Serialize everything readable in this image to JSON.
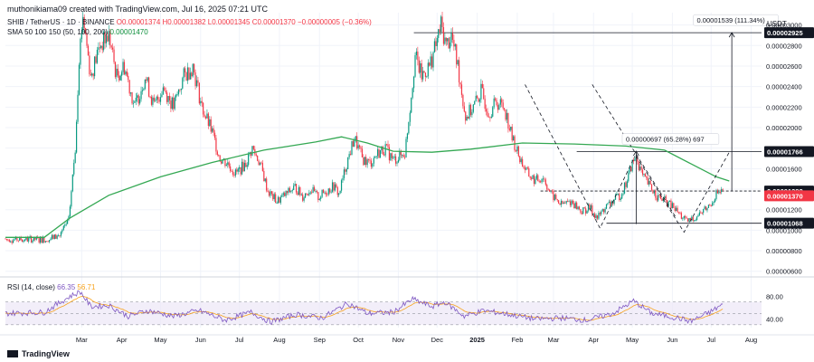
{
  "header": {
    "title": "muthonikiama09 created with TradingView.com, Jul 16, 2025 07:21 UTC"
  },
  "legend": {
    "symbol": "SHIB / TetherUS · 1D · BINANCE",
    "ohlc": "O0.00001374  H0.00001382  L0.00001345  C0.00001370  −0.00000005 (−0.36%)",
    "sma_label": "SMA 50 100 150 (50, 100, 200)",
    "sma_value": "0.00001470"
  },
  "rsi_legend": {
    "label": "RSI (14, close)",
    "value1": "66.35",
    "value2": "56.71"
  },
  "currency": "USDT",
  "brand": "TradingView",
  "colors": {
    "up": "#089981",
    "down": "#f23645",
    "sma": "#34a853",
    "rsi": "#7e57c2",
    "rsi_ma": "#f7a21b",
    "rsi_band": "#ede7f6"
  },
  "chart_data": [
    {
      "type": "candlestick",
      "ylim": [
        5.8e-06,
        3.12e-05
      ],
      "y_ticks": [
        "0.00003000",
        "0.00002800",
        "0.00002600",
        "0.00002400",
        "0.00002200",
        "0.00002000",
        "0.00001800",
        "0.00001600",
        "0.00001400",
        "0.00001200",
        "0.00001000",
        "0.00000800",
        "0.00000600"
      ],
      "y_tick_values": [
        3e-05,
        2.8e-05,
        2.6e-05,
        2.4e-05,
        2.2e-05,
        2e-05,
        1.8e-05,
        1.6e-05,
        1.4e-05,
        1.2e-05,
        1e-05,
        8e-06,
        6e-06
      ],
      "x_ticks": [
        "Mar",
        "Apr",
        "May",
        "Jun",
        "Jul",
        "Aug",
        "Sep",
        "Oct",
        "Nov",
        "Dec",
        "2025",
        "Feb",
        "Mar",
        "Apr",
        "May",
        "Jun",
        "Jul",
        "Aug"
      ],
      "x_tick_days": [
        59,
        90,
        120,
        151,
        181,
        212,
        243,
        273,
        304,
        334,
        365,
        396,
        424,
        455,
        485,
        516,
        546,
        577
      ],
      "anchors": [
        {
          "day": 35,
          "close": 9.2e-06
        },
        {
          "day": 42,
          "close": 9.5e-06
        },
        {
          "day": 49,
          "close": 1.1e-05
        },
        {
          "day": 54,
          "close": 1.8e-05
        },
        {
          "day": 57,
          "close": 2.7e-05
        },
        {
          "day": 60,
          "close": 3.1e-05
        },
        {
          "day": 66,
          "close": 2.5e-05
        },
        {
          "day": 73,
          "close": 2.8e-05
        },
        {
          "day": 80,
          "close": 2.9e-05
        },
        {
          "day": 86,
          "close": 2.5e-05
        },
        {
          "day": 92,
          "close": 2.6e-05
        },
        {
          "day": 100,
          "close": 2.2e-05
        },
        {
          "day": 108,
          "close": 2.5e-05
        },
        {
          "day": 115,
          "close": 2.2e-05
        },
        {
          "day": 122,
          "close": 2.4e-05
        },
        {
          "day": 130,
          "close": 2.2e-05
        },
        {
          "day": 138,
          "close": 2.5e-05
        },
        {
          "day": 145,
          "close": 2.6e-05
        },
        {
          "day": 152,
          "close": 2.2e-05
        },
        {
          "day": 160,
          "close": 1.95e-05
        },
        {
          "day": 166,
          "close": 1.7e-05
        },
        {
          "day": 172,
          "close": 1.65e-05
        },
        {
          "day": 178,
          "close": 1.55e-05
        },
        {
          "day": 186,
          "close": 1.65e-05
        },
        {
          "day": 191,
          "close": 1.8e-05
        },
        {
          "day": 197,
          "close": 1.65e-05
        },
        {
          "day": 203,
          "close": 1.38e-05
        },
        {
          "day": 210,
          "close": 1.28e-05
        },
        {
          "day": 217,
          "close": 1.35e-05
        },
        {
          "day": 224,
          "close": 1.42e-05
        },
        {
          "day": 230,
          "close": 1.33e-05
        },
        {
          "day": 236,
          "close": 1.4e-05
        },
        {
          "day": 242,
          "close": 1.32e-05
        },
        {
          "day": 248,
          "close": 1.38e-05
        },
        {
          "day": 254,
          "close": 1.43e-05
        },
        {
          "day": 258,
          "close": 1.35e-05
        },
        {
          "day": 264,
          "close": 1.65e-05
        },
        {
          "day": 270,
          "close": 1.9e-05
        },
        {
          "day": 276,
          "close": 1.7e-05
        },
        {
          "day": 282,
          "close": 1.65e-05
        },
        {
          "day": 288,
          "close": 1.75e-05
        },
        {
          "day": 294,
          "close": 1.8e-05
        },
        {
          "day": 300,
          "close": 1.68e-05
        },
        {
          "day": 305,
          "close": 1.72e-05
        },
        {
          "day": 309,
          "close": 1.75e-05
        },
        {
          "day": 313,
          "close": 2.2e-05
        },
        {
          "day": 317,
          "close": 2.7e-05
        },
        {
          "day": 322,
          "close": 2.5e-05
        },
        {
          "day": 328,
          "close": 2.6e-05
        },
        {
          "day": 333,
          "close": 2.8e-05
        },
        {
          "day": 337,
          "close": 3e-05
        },
        {
          "day": 341,
          "close": 2.8e-05
        },
        {
          "day": 345,
          "close": 2.9e-05
        },
        {
          "day": 350,
          "close": 2.6e-05
        },
        {
          "day": 356,
          "close": 2.1e-05
        },
        {
          "day": 362,
          "close": 2.2e-05
        },
        {
          "day": 368,
          "close": 2.35e-05
        },
        {
          "day": 374,
          "close": 2.15e-05
        },
        {
          "day": 380,
          "close": 2.25e-05
        },
        {
          "day": 386,
          "close": 2.2e-05
        },
        {
          "day": 392,
          "close": 1.9e-05
        },
        {
          "day": 398,
          "close": 1.7e-05
        },
        {
          "day": 404,
          "close": 1.55e-05
        },
        {
          "day": 410,
          "close": 1.48e-05
        },
        {
          "day": 416,
          "close": 1.52e-05
        },
        {
          "day": 422,
          "close": 1.35e-05
        },
        {
          "day": 430,
          "close": 1.25e-05
        },
        {
          "day": 438,
          "close": 1.28e-05
        },
        {
          "day": 446,
          "close": 1.18e-05
        },
        {
          "day": 452,
          "close": 1.22e-05
        },
        {
          "day": 458,
          "close": 1.12e-05
        },
        {
          "day": 464,
          "close": 1.22e-05
        },
        {
          "day": 470,
          "close": 1.28e-05
        },
        {
          "day": 476,
          "close": 1.35e-05
        },
        {
          "day": 480,
          "close": 1.45e-05
        },
        {
          "day": 484,
          "close": 1.62e-05
        },
        {
          "day": 488,
          "close": 1.72e-05
        },
        {
          "day": 493,
          "close": 1.52e-05
        },
        {
          "day": 499,
          "close": 1.42e-05
        },
        {
          "day": 505,
          "close": 1.32e-05
        },
        {
          "day": 511,
          "close": 1.28e-05
        },
        {
          "day": 517,
          "close": 1.22e-05
        },
        {
          "day": 522,
          "close": 1.15e-05
        },
        {
          "day": 527,
          "close": 1.08e-05
        },
        {
          "day": 533,
          "close": 1.12e-05
        },
        {
          "day": 539,
          "close": 1.18e-05
        },
        {
          "day": 545,
          "close": 1.24e-05
        },
        {
          "day": 550,
          "close": 1.36e-05
        },
        {
          "day": 555,
          "close": 1.37e-05
        }
      ],
      "sma": [
        {
          "day": 0,
          "value": 9.3e-06
        },
        {
          "day": 30,
          "value": 9.3e-06
        },
        {
          "day": 50,
          "value": 1.12e-05
        },
        {
          "day": 80,
          "value": 1.34e-05
        },
        {
          "day": 120,
          "value": 1.52e-05
        },
        {
          "day": 160,
          "value": 1.66e-05
        },
        {
          "day": 200,
          "value": 1.78e-05
        },
        {
          "day": 240,
          "value": 1.86e-05
        },
        {
          "day": 260,
          "value": 1.91e-05
        },
        {
          "day": 280,
          "value": 1.85e-05
        },
        {
          "day": 300,
          "value": 1.77e-05
        },
        {
          "day": 330,
          "value": 1.76e-05
        },
        {
          "day": 360,
          "value": 1.79e-05
        },
        {
          "day": 400,
          "value": 1.85e-05
        },
        {
          "day": 440,
          "value": 1.84e-05
        },
        {
          "day": 480,
          "value": 1.82e-05
        },
        {
          "day": 510,
          "value": 1.78e-05
        },
        {
          "day": 530,
          "value": 1.65e-05
        },
        {
          "day": 550,
          "value": 1.52e-05
        },
        {
          "day": 560,
          "value": 1.48e-05
        }
      ],
      "horizontal_levels": [
        {
          "label": "0.00002925",
          "value": 2.925e-05,
          "x_from_day": 316,
          "style": "solid"
        },
        {
          "label": "0.00001766",
          "value": 1.766e-05,
          "x_from_day": 442,
          "style": "solid"
        },
        {
          "label": "0.00001382",
          "value": 1.382e-05,
          "x_from_day": 414,
          "style": "dashed"
        },
        {
          "label": "0.00001068",
          "value": 1.068e-05,
          "x_from_day": 465,
          "style": "solid"
        }
      ],
      "current_price_label": "0.00001370",
      "current_price_value": 1.37e-05,
      "measure_labels": [
        {
          "text": "0.00001539 (111.34%)",
          "day": 535,
          "value": 3.03e-05
        },
        {
          "text": "0.00000697 (65.28%) 697",
          "day": 480,
          "value": 1.87e-05
        }
      ],
      "pattern_lines": [
        {
          "points": [
            [
              454,
              2.42e-05
            ],
            [
              519,
              1.12e-05
            ]
          ],
          "style": "dashed"
        },
        {
          "points": [
            [
              402,
              2.42e-05
            ],
            [
              460,
              1.02e-05
            ],
            [
              487,
              1.72e-05
            ]
          ],
          "style": "dashed"
        },
        {
          "points": [
            [
              488,
              1.72e-05
            ],
            [
              525,
              9.8e-06
            ],
            [
              560,
              1.76e-05
            ]
          ],
          "style": "dashed"
        }
      ],
      "measure_arrows": [
        {
          "day": 562,
          "from": 1.38e-05,
          "to": 2.925e-05
        },
        {
          "day": 488,
          "from": 1.06e-05,
          "to": 1.77e-05
        }
      ]
    },
    {
      "type": "line",
      "title": "RSI (14, close)",
      "ylim": [
        25,
        95
      ],
      "y_ticks": [
        "80.00",
        "40.00"
      ],
      "y_tick_values": [
        80,
        40
      ],
      "band": [
        30,
        70
      ],
      "anchors": [
        {
          "day": 0,
          "value": 50
        },
        {
          "day": 30,
          "value": 52
        },
        {
          "day": 50,
          "value": 80
        },
        {
          "day": 58,
          "value": 88
        },
        {
          "day": 66,
          "value": 62
        },
        {
          "day": 80,
          "value": 64
        },
        {
          "day": 95,
          "value": 45
        },
        {
          "day": 110,
          "value": 55
        },
        {
          "day": 130,
          "value": 45
        },
        {
          "day": 150,
          "value": 55
        },
        {
          "day": 170,
          "value": 38
        },
        {
          "day": 190,
          "value": 52
        },
        {
          "day": 205,
          "value": 35
        },
        {
          "day": 225,
          "value": 48
        },
        {
          "day": 245,
          "value": 42
        },
        {
          "day": 265,
          "value": 68
        },
        {
          "day": 280,
          "value": 50
        },
        {
          "day": 300,
          "value": 52
        },
        {
          "day": 315,
          "value": 75
        },
        {
          "day": 330,
          "value": 62
        },
        {
          "day": 340,
          "value": 70
        },
        {
          "day": 355,
          "value": 45
        },
        {
          "day": 370,
          "value": 55
        },
        {
          "day": 390,
          "value": 48
        },
        {
          "day": 410,
          "value": 40
        },
        {
          "day": 430,
          "value": 42
        },
        {
          "day": 450,
          "value": 38
        },
        {
          "day": 470,
          "value": 50
        },
        {
          "day": 486,
          "value": 72
        },
        {
          "day": 500,
          "value": 50
        },
        {
          "day": 520,
          "value": 42
        },
        {
          "day": 530,
          "value": 36
        },
        {
          "day": 545,
          "value": 52
        },
        {
          "day": 555,
          "value": 66
        }
      ],
      "current_value": 66.35,
      "ma_value": 56.71
    }
  ]
}
